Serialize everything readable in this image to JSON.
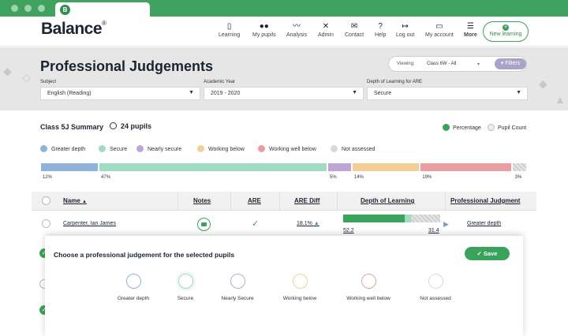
{
  "app": {
    "logo": "Balance",
    "logo_mark": "®",
    "favicon": "B"
  },
  "nav": {
    "items": [
      {
        "label": "Learning",
        "icon": "book-icon",
        "glyph": "▯"
      },
      {
        "label": "My pupils",
        "icon": "users-icon",
        "glyph": "●●"
      },
      {
        "label": "Analysis",
        "icon": "chart-line-icon",
        "glyph": "〰"
      },
      {
        "label": "Admin",
        "icon": "tools-icon",
        "glyph": "✕"
      },
      {
        "label": "Contact",
        "icon": "envelope-icon",
        "glyph": "✉"
      },
      {
        "label": "Help",
        "icon": "question-icon",
        "glyph": "?"
      },
      {
        "label": "Log out",
        "icon": "logout-icon",
        "glyph": "↦"
      },
      {
        "label": "My account",
        "icon": "account-icon",
        "glyph": "▭"
      },
      {
        "label": "More",
        "icon": "menu-icon",
        "glyph": "☰"
      }
    ],
    "new_learning": "New learning"
  },
  "header": {
    "title": "Professional Judgements",
    "viewing_label": "Viewing:",
    "viewing_value": "Class 6W - All",
    "filters_label": "Filters",
    "filters": [
      {
        "label": "Subject",
        "value": "English (Reading)"
      },
      {
        "label": "Academic Year",
        "value": "2019 - 2020"
      },
      {
        "label": "Depth of Learning for ARE",
        "value": "Secure"
      }
    ]
  },
  "summary": {
    "title": "Class 5J Summary",
    "pupil_count": "24 pupils",
    "toggle_percentage": "Percentage",
    "toggle_count": "Pupil Count"
  },
  "colors": {
    "brand": "#3aa35b",
    "greater_depth": "#8fb2da",
    "secure": "#9fdcc2",
    "nearly_secure": "#bda6d6",
    "working_below": "#f3cf95",
    "working_well_below": "#eb9ea0",
    "not_assessed": "#d9d9d9"
  },
  "legend": [
    "Greater depth",
    "Secure",
    "Nearly secure",
    "Working below",
    "Working well below",
    "Not assessed"
  ],
  "distribution": [
    {
      "category": "Greater depth",
      "pct": "12%",
      "value": 12
    },
    {
      "category": "Secure",
      "pct": "47%",
      "value": 47
    },
    {
      "category": "Nearly secure",
      "pct": "5%",
      "value": 5
    },
    {
      "category": "Working below",
      "pct": "14%",
      "value": 14
    },
    {
      "category": "Working well below",
      "pct": "19%",
      "value": 19
    },
    {
      "category": "Not assessed",
      "pct": "3%",
      "value": 3
    }
  ],
  "table": {
    "headers": [
      "Name",
      "Notes",
      "ARE",
      "ARE Diff",
      "Depth of Learning",
      "Professional Judgment"
    ],
    "sort_indicator": "▲",
    "rows": [
      {
        "name": "Carpenter, Ian James",
        "are_diff": "18.1%",
        "dol_left": "52.2",
        "dol_right": "31.4",
        "judgment": "Greater depth"
      }
    ]
  },
  "modal": {
    "title": "Choose a professional judgement for the selected pupils",
    "save_label": "Save",
    "options": [
      {
        "label": "Greater depth",
        "color": "#8fb2da"
      },
      {
        "label": "Secure",
        "color": "#9fdcc2"
      },
      {
        "label": "Nearly Secure",
        "color": "#bda6d6"
      },
      {
        "label": "Working below",
        "color": "#f3cf95"
      },
      {
        "label": "Working well below",
        "color": "#eb9ea0"
      },
      {
        "label": "Not assessed",
        "color": "#d9d9d9"
      }
    ]
  }
}
